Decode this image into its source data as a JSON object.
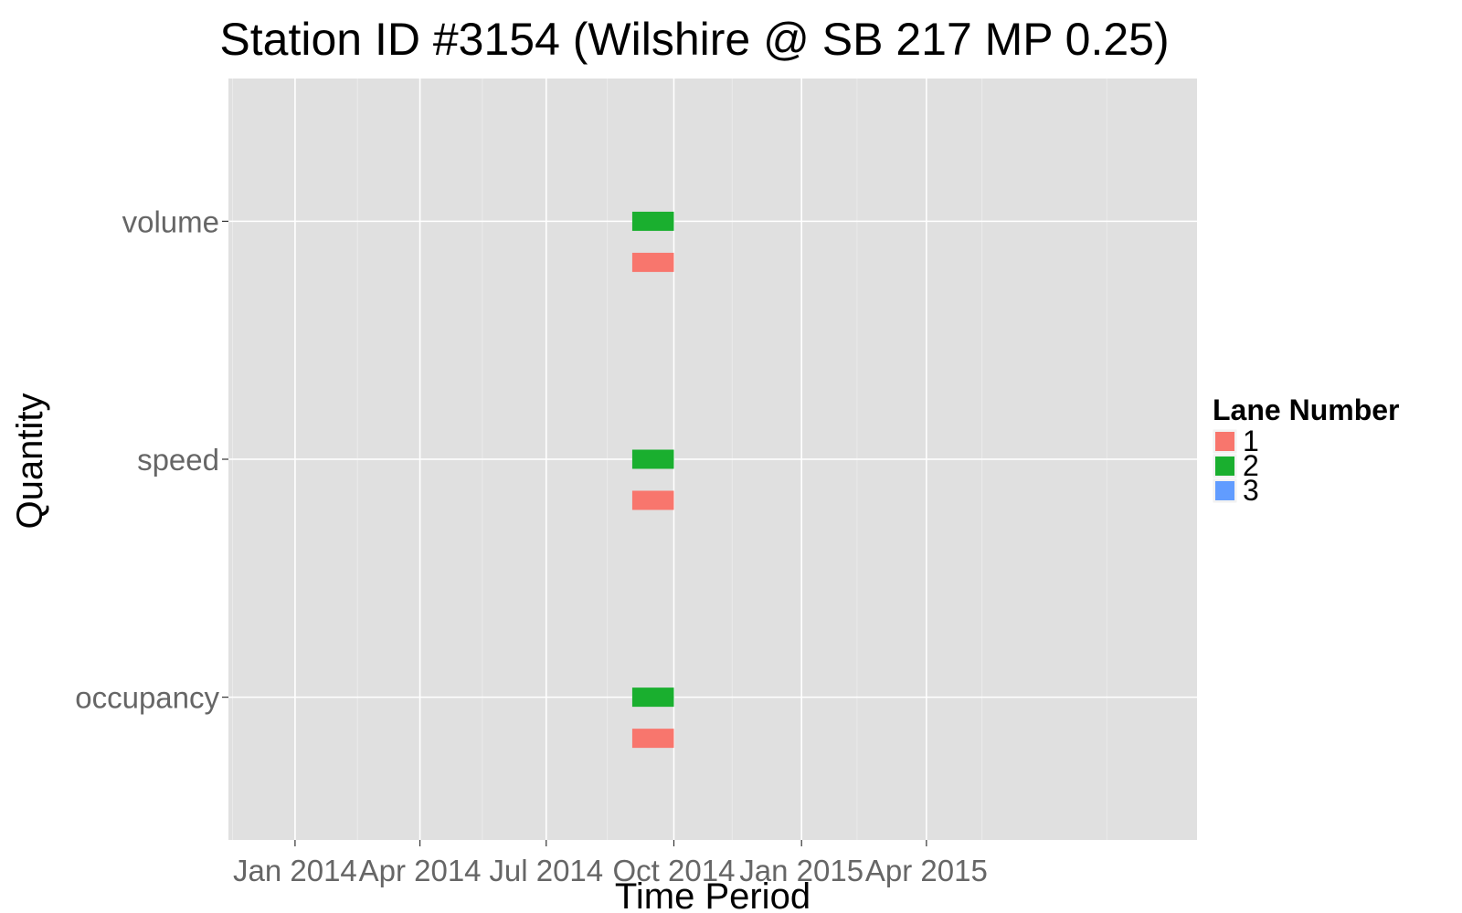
{
  "chart_data": {
    "type": "bar",
    "subtype": "horizontal-range",
    "title": "Station ID #3154 (Wilshire @ SB 217 MP 0.25)",
    "xlabel": "Time Period",
    "ylabel": "Quantity",
    "x_scale": "date",
    "xlim": [
      "2013-11-14",
      "2015-10-13"
    ],
    "x_ticks": [
      {
        "date": "2014-01-01",
        "label": "Jan 2014"
      },
      {
        "date": "2014-04-01",
        "label": "Apr 2014"
      },
      {
        "date": "2014-07-01",
        "label": "Jul 2014"
      },
      {
        "date": "2014-10-01",
        "label": "Oct 2014"
      },
      {
        "date": "2015-01-01",
        "label": "Jan 2015"
      },
      {
        "date": "2015-04-01",
        "label": "Apr 2015"
      }
    ],
    "categories": [
      "volume",
      "speed",
      "occupancy"
    ],
    "grid": true,
    "legend": {
      "title": "Lane Number",
      "position": "right",
      "entries": [
        {
          "label": "1",
          "color": "#f8766d"
        },
        {
          "label": "2",
          "color": "#1aaf2f"
        },
        {
          "label": "3",
          "color": "#619cff"
        }
      ]
    },
    "series": [
      {
        "name": "1",
        "color": "#f8766d",
        "bars": [
          {
            "category": "volume",
            "start": "2014-09-01",
            "end": "2014-10-01"
          },
          {
            "category": "speed",
            "start": "2014-09-01",
            "end": "2014-10-01"
          },
          {
            "category": "occupancy",
            "start": "2014-09-01",
            "end": "2014-10-01"
          }
        ]
      },
      {
        "name": "2",
        "color": "#1aaf2f",
        "bars": [
          {
            "category": "volume",
            "start": "2014-09-01",
            "end": "2014-10-01"
          },
          {
            "category": "speed",
            "start": "2014-09-01",
            "end": "2014-10-01"
          },
          {
            "category": "occupancy",
            "start": "2014-09-01",
            "end": "2014-10-01"
          }
        ]
      },
      {
        "name": "3",
        "color": "#619cff",
        "bars": []
      }
    ]
  },
  "colors": {
    "panel_background": "#e0e0e0",
    "grid_major": "#ffffff",
    "grid_minor": "#ebebeb",
    "tick_text": "#666666"
  }
}
